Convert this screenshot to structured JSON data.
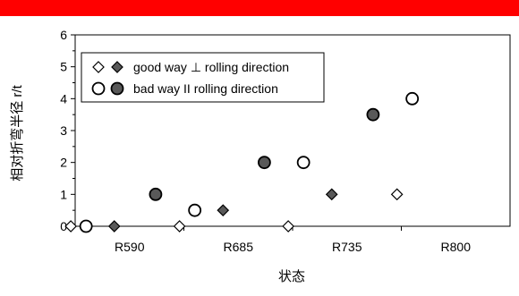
{
  "chart_data": {
    "type": "scatter",
    "title": "",
    "xlabel": "状态",
    "ylabel": "相对折弯半径 r/t",
    "categories": [
      "R590",
      "R685",
      "R735",
      "R800"
    ],
    "ylim": [
      0,
      6
    ],
    "yticks": [
      "0",
      "1",
      "2",
      "3",
      "4",
      "5",
      "6"
    ],
    "grid": false,
    "legend_position": "top-left",
    "legend": [
      {
        "label": "good way ⊥ rolling direction",
        "markers": [
          "open-diamond",
          "filled-diamond"
        ]
      },
      {
        "label": "bad way II rolling direction",
        "markers": [
          "open-circle",
          "filled-circle"
        ]
      }
    ],
    "series": [
      {
        "marker": "open-diamond",
        "values": [
          0,
          0,
          0,
          1
        ]
      },
      {
        "marker": "filled-diamond",
        "values": [
          0,
          0.5,
          1,
          null
        ]
      },
      {
        "marker": "open-circle",
        "values": [
          0,
          0.5,
          2,
          4
        ]
      },
      {
        "marker": "filled-circle",
        "values": [
          1,
          2,
          3.5,
          null
        ]
      }
    ],
    "colors": {
      "filled": "#595959",
      "open": "#ffffff",
      "stroke": "#000000",
      "banner": "#ff0000"
    }
  }
}
